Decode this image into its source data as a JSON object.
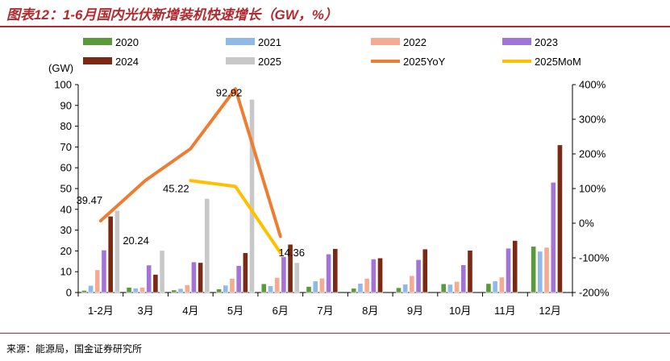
{
  "title": "图表12：1-6月国内光伏新增装机快速增长（GW，%）",
  "source": "来源：能源局，国金证券研究所",
  "chart_data": {
    "type": "bar",
    "categories": [
      "1-2月",
      "3月",
      "4月",
      "5月",
      "6月",
      "7月",
      "8月",
      "9月",
      "10月",
      "11月",
      "12月"
    ],
    "y_unit_label": "(GW)",
    "ylim": [
      0,
      100
    ],
    "y_ticks": [
      0,
      10,
      20,
      30,
      40,
      50,
      60,
      70,
      80,
      90,
      100
    ],
    "y2lim": [
      -200,
      400
    ],
    "y2_ticks": [
      "-200%",
      "-100%",
      "0%",
      "100%",
      "200%",
      "300%",
      "400%"
    ],
    "grid": false,
    "legend_position": "top",
    "series": [
      {
        "name": "2020",
        "color": "#5b9a3a",
        "values": [
          1.0,
          2.5,
          1.2,
          1.7,
          4.2,
          2.9,
          2.0,
          2.3,
          4.2,
          4.3,
          22.2
        ]
      },
      {
        "name": "2021",
        "color": "#8fb9e6",
        "values": [
          3.4,
          2.1,
          1.9,
          3.5,
          3.2,
          5.5,
          4.4,
          4.0,
          3.9,
          5.5,
          19.8
        ]
      },
      {
        "name": "2022",
        "color": "#f5ab92",
        "values": [
          10.9,
          2.5,
          3.7,
          6.8,
          7.2,
          6.9,
          6.8,
          8.1,
          5.3,
          7.4,
          21.7
        ]
      },
      {
        "name": "2023",
        "color": "#a374d8",
        "values": [
          20.4,
          13.2,
          14.7,
          12.9,
          17.2,
          18.5,
          16.1,
          15.8,
          13.3,
          21.3,
          53.0
        ]
      },
      {
        "name": "2024",
        "color": "#7b2912",
        "values": [
          36.7,
          8.7,
          14.4,
          19.1,
          23.2,
          21.1,
          16.6,
          20.9,
          20.3,
          25.0,
          71.0
        ]
      },
      {
        "name": "2025",
        "color": "#c8c8c8",
        "values": [
          39.47,
          20.24,
          45.22,
          92.92,
          14.36,
          null,
          null,
          null,
          null,
          null,
          null
        ]
      }
    ],
    "line_series": [
      {
        "name": "2025YoY",
        "color": "#ed7d31",
        "axis": "right",
        "unit": "%",
        "values": [
          7,
          124,
          215,
          388,
          -38,
          null,
          null,
          null,
          null,
          null,
          null
        ]
      },
      {
        "name": "2025MoM",
        "color": "#ffc000",
        "axis": "right",
        "unit": "%",
        "values": [
          null,
          null,
          123,
          106,
          -85,
          null,
          null,
          null,
          null,
          null,
          null
        ]
      }
    ],
    "data_labels": [
      {
        "text": "39.47",
        "category": "1-2月",
        "value": 39.47
      },
      {
        "text": "20.24",
        "category": "3月",
        "value": 20.24
      },
      {
        "text": "45.22",
        "category": "4月",
        "value": 45.22
      },
      {
        "text": "92.92",
        "category": "5月",
        "value": 92.92
      },
      {
        "text": "14.36",
        "category": "6月",
        "value": 14.36
      }
    ]
  }
}
